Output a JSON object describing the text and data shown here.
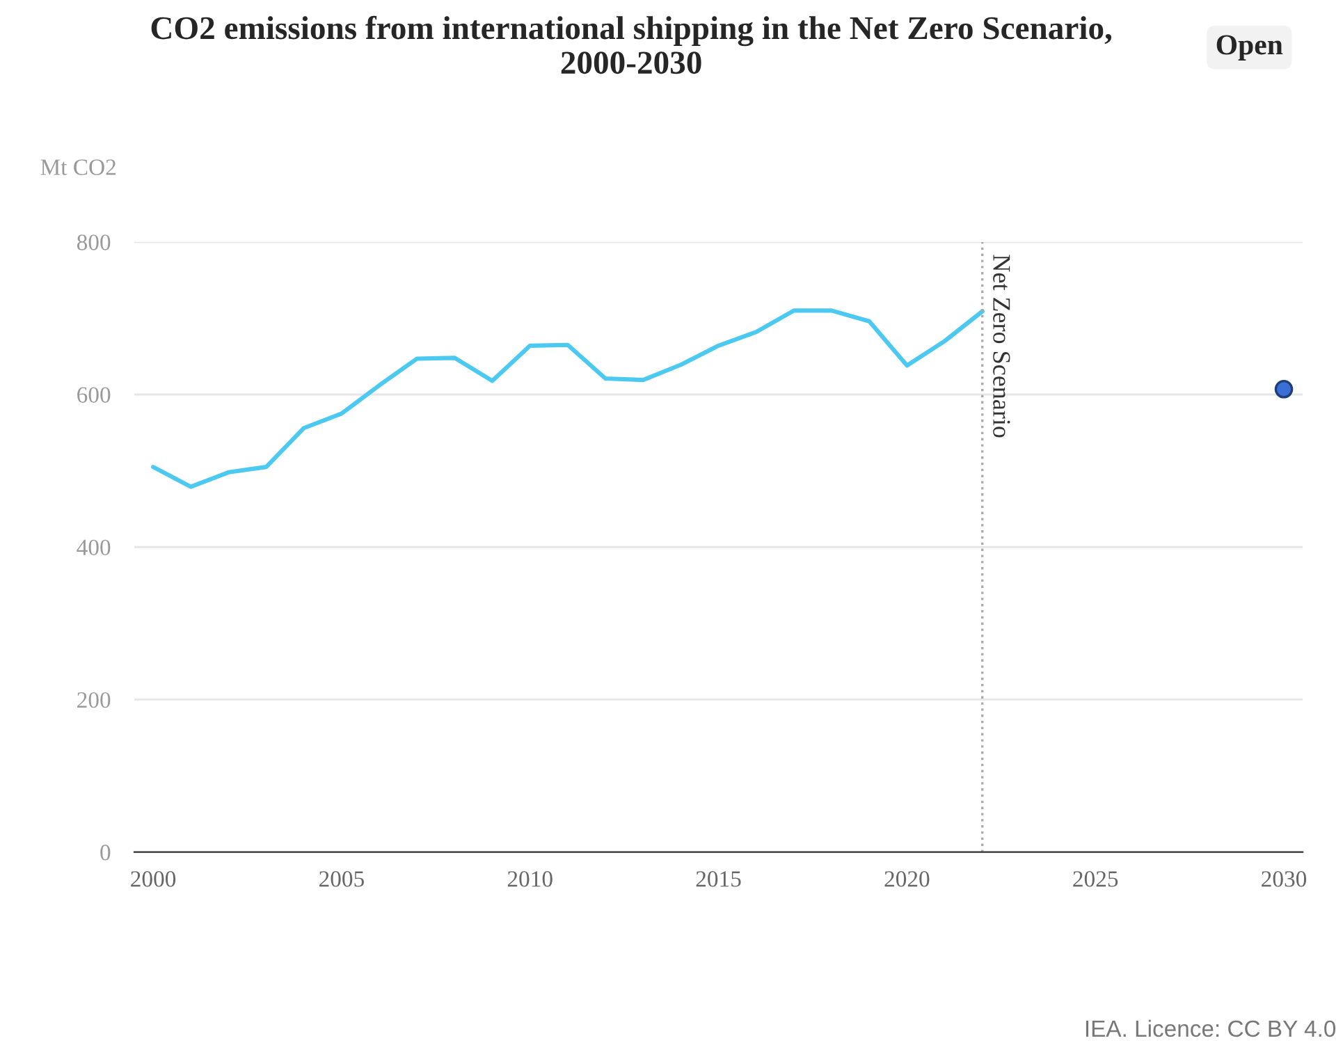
{
  "chart_data": {
    "type": "line",
    "title": "CO2 emissions from international shipping in the Net Zero Scenario,\n2000-2030",
    "ylabel": "Mt CO2",
    "series": [
      {
        "color": "#4cc9f0",
        "x": [
          2000,
          2001,
          2002,
          2003,
          2004,
          2005,
          2006,
          2007,
          2008,
          2009,
          2010,
          2011,
          2012,
          2013,
          2014,
          2015,
          2016,
          2017,
          2018,
          2019,
          2020,
          2021,
          2022
        ],
        "values": [
          505,
          479,
          498,
          505,
          556,
          575,
          612,
          647,
          648,
          618,
          664,
          665,
          621,
          619,
          639,
          664,
          682,
          710,
          710,
          696,
          638,
          670,
          709
        ]
      },
      {
        "type": "scatter",
        "color": "#3b6fd6",
        "x": [
          2030
        ],
        "values": [
          607
        ]
      }
    ],
    "xlim": [
      1999.5,
      2030.5
    ],
    "xticks": [
      2000,
      2005,
      2010,
      2015,
      2020,
      2025,
      2030
    ],
    "ylim": [
      0,
      800
    ],
    "yticks": [
      0,
      200,
      400,
      600,
      800
    ],
    "grid": "y",
    "legend": false,
    "ref_lines": [
      {
        "axis": "x",
        "value": 2022,
        "label": "Net Zero Scenario",
        "line_style": "dotted",
        "color": "#aaaaaa"
      }
    ],
    "annotations": [
      "Open",
      "IEA. Licence: CC BY 4.0"
    ]
  }
}
